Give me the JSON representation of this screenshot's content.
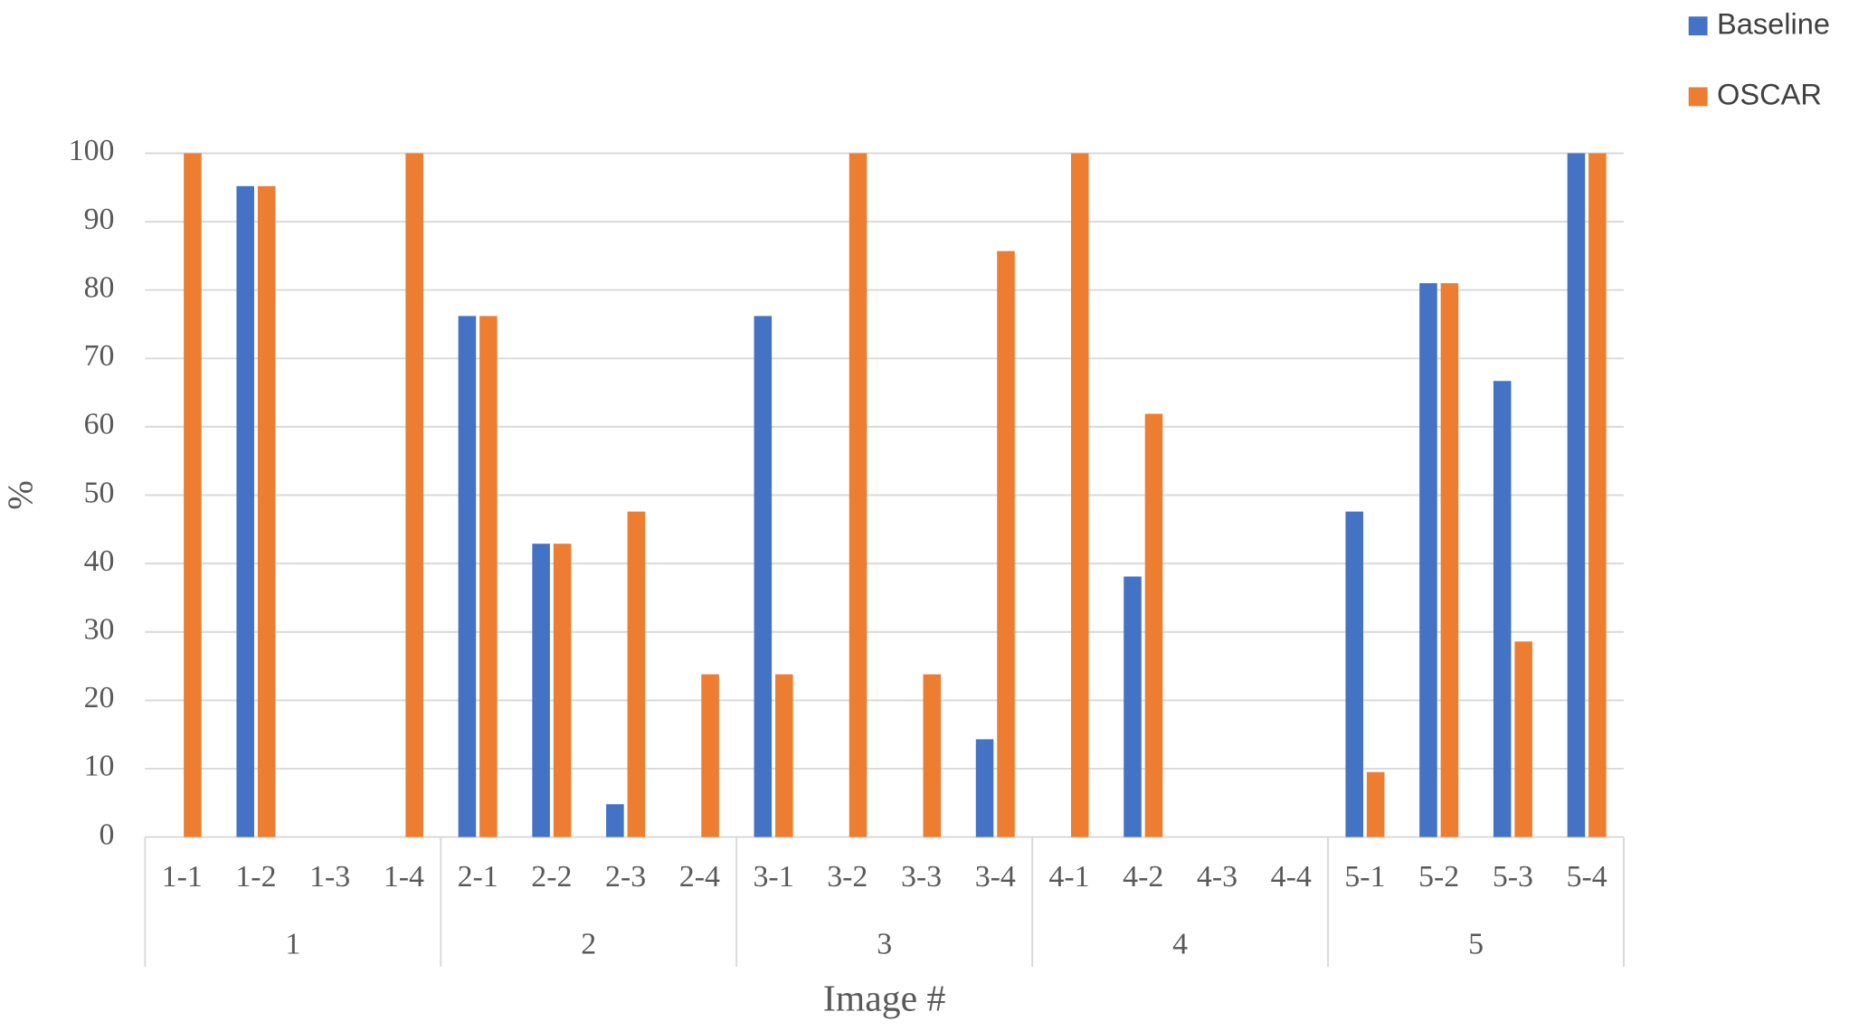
{
  "chart_data": {
    "type": "bar",
    "x_label": "Image #",
    "y_label": "%",
    "categories": [
      "1-1",
      "1-2",
      "1-3",
      "1-4",
      "2-1",
      "2-2",
      "2-3",
      "2-4",
      "3-1",
      "3-2",
      "3-3",
      "3-4",
      "4-1",
      "4-2",
      "4-3",
      "4-4",
      "5-1",
      "5-2",
      "5-3",
      "5-4"
    ],
    "groups": [
      "1",
      "2",
      "3",
      "4",
      "5"
    ],
    "series": [
      {
        "name": "Baseline",
        "color": "#4472c4",
        "values": [
          0,
          95.2,
          0,
          0,
          76.2,
          42.9,
          4.8,
          0,
          76.2,
          0,
          0,
          14.3,
          0,
          38.1,
          0,
          0,
          47.6,
          81,
          66.7,
          100
        ]
      },
      {
        "name": "OSCAR",
        "color": "#ed7d31",
        "values": [
          100,
          95.2,
          0,
          100,
          76.2,
          42.9,
          47.6,
          23.8,
          23.8,
          100,
          23.8,
          85.7,
          100,
          61.9,
          0,
          0,
          9.5,
          81,
          28.6,
          100
        ]
      }
    ],
    "ylim": [
      0,
      100
    ],
    "yticks": [
      0,
      10,
      20,
      30,
      40,
      50,
      60,
      70,
      80,
      90,
      100
    ],
    "grid": true,
    "legend": "top-right"
  }
}
